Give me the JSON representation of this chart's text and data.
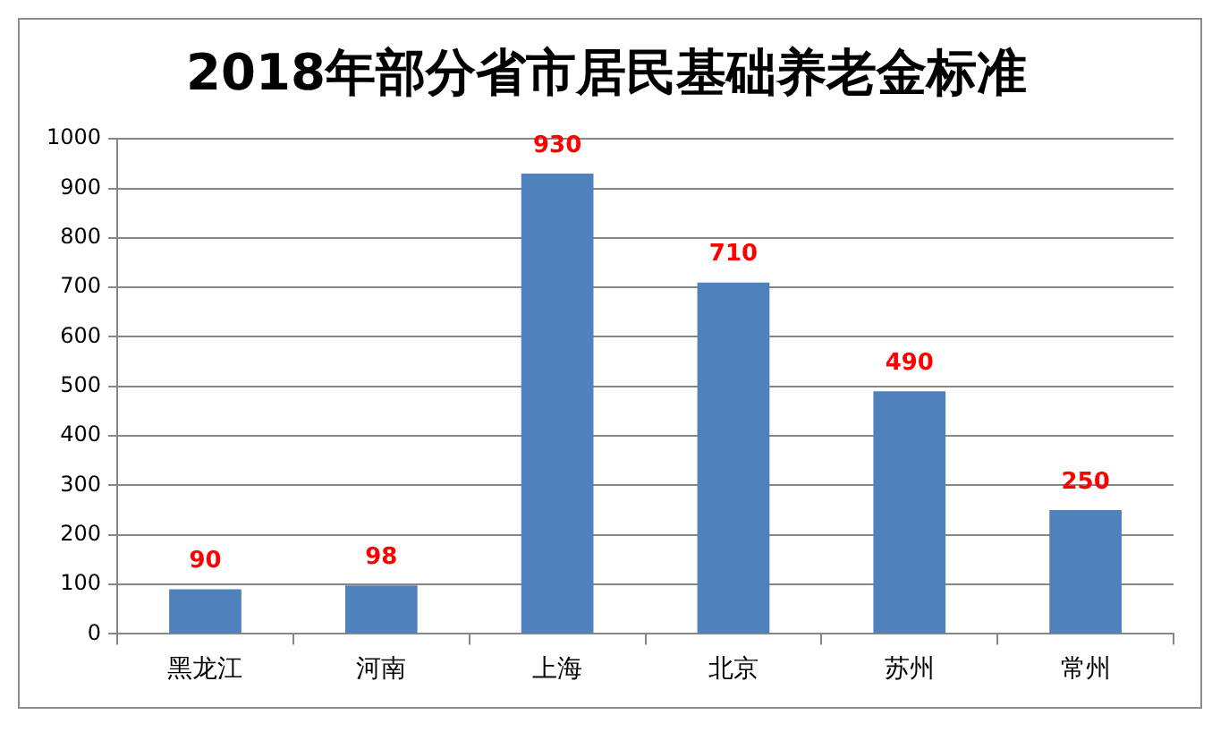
{
  "chart_data": {
    "type": "bar",
    "title": "2018年部分省市居民基础养老金标准",
    "categories": [
      "黑龙江",
      "河南",
      "上海",
      "北京",
      "苏州",
      "常州"
    ],
    "values": [
      90,
      98,
      930,
      710,
      490,
      250
    ],
    "color": "#4f81bd",
    "ylim": [
      0,
      1000
    ],
    "yticks": [
      0,
      100,
      200,
      300,
      400,
      500,
      600,
      700,
      800,
      900,
      1000
    ],
    "grid": "y",
    "legend": false,
    "data_labels": true
  }
}
